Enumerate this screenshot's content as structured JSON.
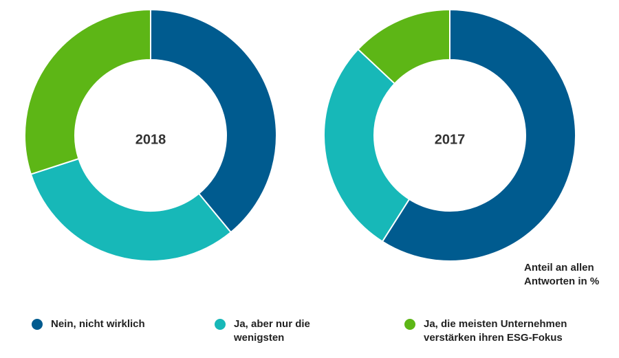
{
  "chart_data": {
    "type": "pie",
    "variant": "donut",
    "categories": [
      "Nein, nicht wirklich",
      "Ja, aber nur die wenigsten",
      "Ja, die meisten Unternehmen verstärken ihren ESG-Fokus"
    ],
    "colors": [
      "#005b8f",
      "#17b8b8",
      "#5db616"
    ],
    "charts": [
      {
        "year_label": "2018",
        "values": [
          39,
          31,
          30
        ]
      },
      {
        "year_label": "2017",
        "values": [
          59,
          28,
          13
        ]
      }
    ],
    "note": "Anteil an allen Antworten in %",
    "legend_position": "bottom"
  },
  "legend": [
    {
      "label": "Nein, nicht wirklich"
    },
    {
      "label": "Ja, aber nur die wenigsten"
    },
    {
      "label": "Ja, die meisten Unternehmen verstärken ihren ESG-Fokus"
    }
  ]
}
